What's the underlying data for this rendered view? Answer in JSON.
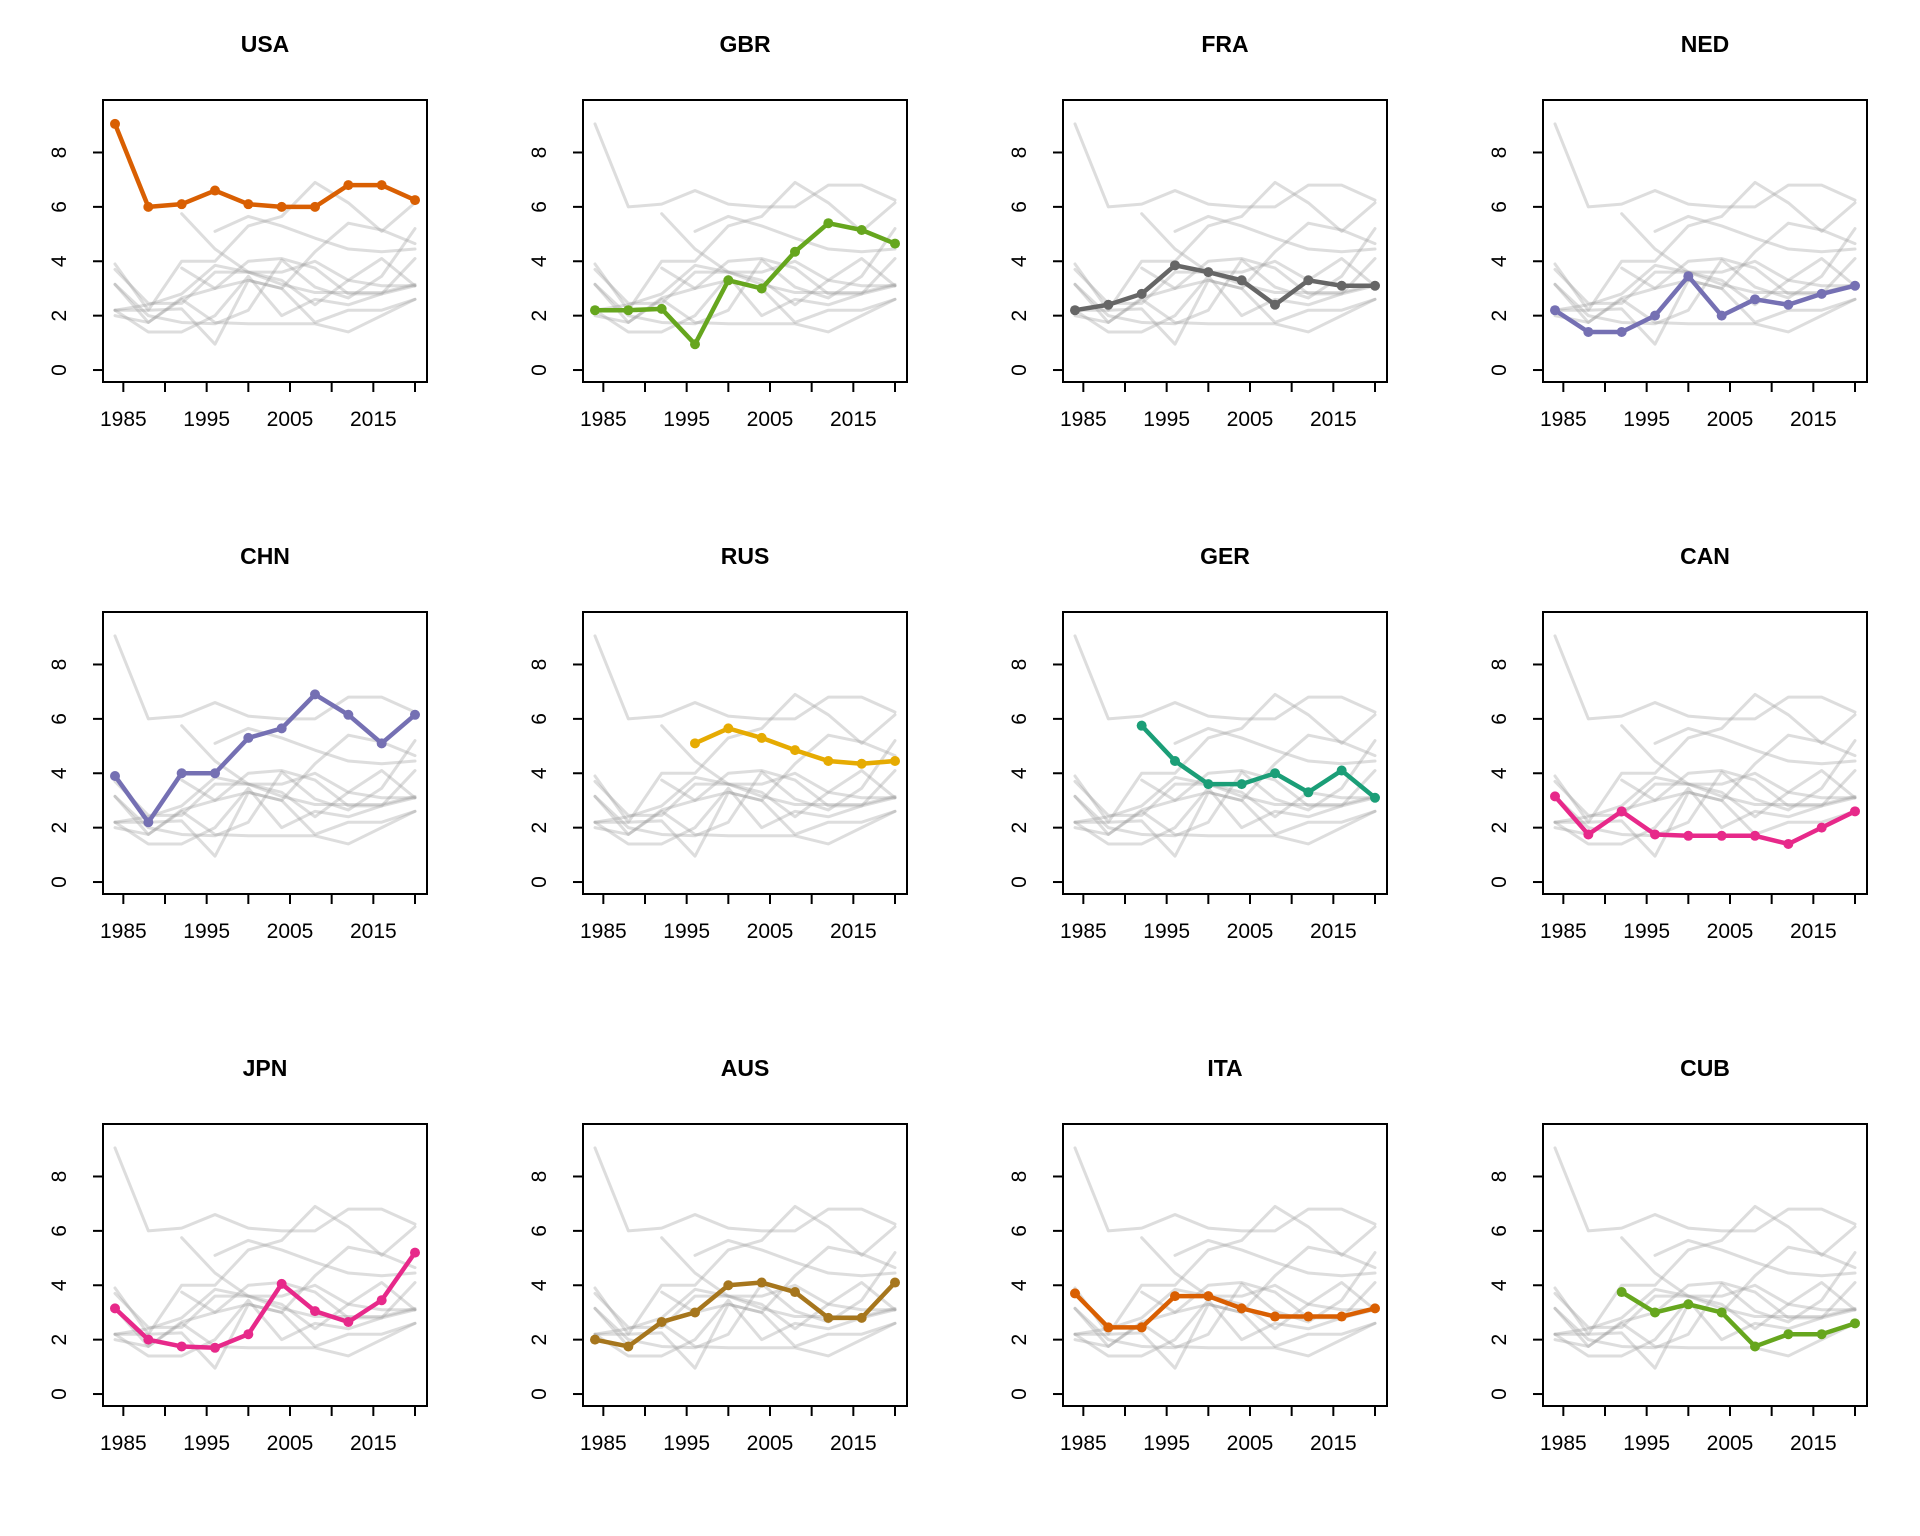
{
  "figure": {
    "background_color": "#ffffff",
    "panel_count": 12,
    "rows": 3,
    "cols": 4
  },
  "chart_data": {
    "type": "line",
    "description": "Small-multiples spaghetti plot: each panel highlights one country's series over all countries' series in gray",
    "x_years": [
      1984,
      1988,
      1992,
      1996,
      2000,
      2004,
      2008,
      2012,
      2016,
      2020
    ],
    "xlim": [
      1982.56,
      2021.44
    ],
    "ylim": [
      -0.44,
      9.93
    ],
    "x_ticks": [
      1985,
      1990,
      1995,
      2000,
      2005,
      2010,
      2015,
      2020
    ],
    "x_labeled_ticks": [
      1985,
      1995,
      2005,
      2015
    ],
    "x_tick_labels": [
      "1985",
      "1995",
      "2005",
      "2015"
    ],
    "y_ticks": [
      0,
      2,
      4,
      6,
      8
    ],
    "y_tick_labels": [
      "0",
      "2",
      "4",
      "6",
      "8"
    ],
    "grid": false,
    "legend": "none",
    "background_line_color": "#9e9e9e",
    "background_line_opacity": 0.35,
    "panels": [
      {
        "title": "USA",
        "color": "#D95F02",
        "values": [
          9.05,
          6.0,
          6.1,
          6.6,
          6.1,
          6.0,
          6.0,
          6.8,
          6.8,
          6.25
        ]
      },
      {
        "title": "GBR",
        "color": "#66A61E",
        "values": [
          2.2,
          2.2,
          2.25,
          0.95,
          3.3,
          3.0,
          4.35,
          5.4,
          5.15,
          4.65
        ]
      },
      {
        "title": "FRA",
        "color": "#666666",
        "values": [
          2.2,
          2.4,
          2.8,
          3.85,
          3.6,
          3.3,
          2.4,
          3.3,
          3.1,
          3.1
        ]
      },
      {
        "title": "NED",
        "color": "#7570B3",
        "values": [
          2.2,
          1.4,
          1.4,
          2.0,
          3.45,
          2.0,
          2.6,
          2.4,
          2.8,
          3.1
        ]
      },
      {
        "title": "CHN",
        "color": "#7570B3",
        "values": [
          3.9,
          2.2,
          4.0,
          4.0,
          5.3,
          5.65,
          6.9,
          6.15,
          5.1,
          6.15
        ]
      },
      {
        "title": "RUS",
        "color": "#E6AB02",
        "values": [
          null,
          null,
          null,
          5.1,
          5.65,
          5.3,
          4.85,
          4.45,
          4.35,
          4.45
        ]
      },
      {
        "title": "GER",
        "color": "#1B9E77",
        "values": [
          null,
          null,
          5.75,
          4.45,
          3.6,
          3.6,
          4.0,
          3.3,
          4.1,
          3.1
        ]
      },
      {
        "title": "CAN",
        "color": "#E7298A",
        "values": [
          3.15,
          1.75,
          2.6,
          1.75,
          1.7,
          1.7,
          1.7,
          1.4,
          2.0,
          2.6
        ]
      },
      {
        "title": "JPN",
        "color": "#E7298A",
        "values": [
          3.15,
          2.0,
          1.75,
          1.7,
          2.2,
          4.05,
          3.05,
          2.65,
          3.45,
          5.2
        ]
      },
      {
        "title": "AUS",
        "color": "#A6761D",
        "values": [
          2.0,
          1.75,
          2.65,
          3.0,
          4.0,
          4.1,
          3.75,
          2.8,
          2.8,
          4.1
        ]
      },
      {
        "title": "ITA",
        "color": "#D95F02",
        "values": [
          3.7,
          2.45,
          2.45,
          3.6,
          3.6,
          3.15,
          2.85,
          2.85,
          2.85,
          3.15
        ]
      },
      {
        "title": "CUB",
        "color": "#66A61E",
        "values": [
          null,
          null,
          3.75,
          3.0,
          3.3,
          3.0,
          1.75,
          2.2,
          2.2,
          2.6
        ]
      }
    ]
  }
}
